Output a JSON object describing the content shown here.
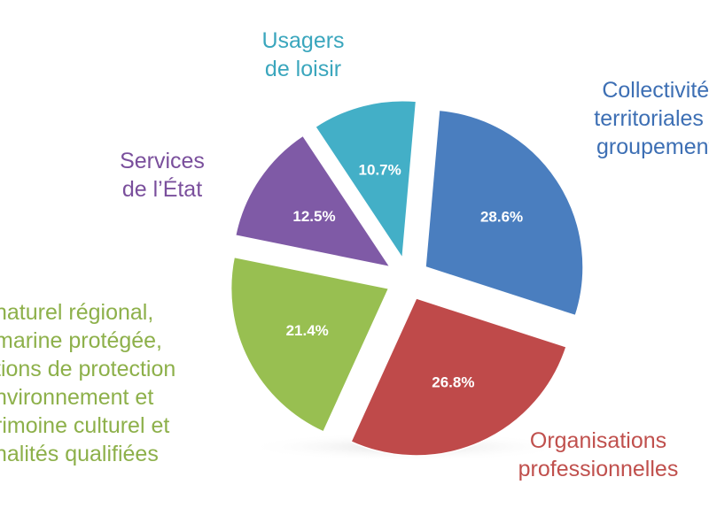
{
  "chart_data": {
    "type": "pie",
    "title": "",
    "legend": "none",
    "slices": [
      {
        "label_lines": [
          "Collectivités",
          "territoriales et",
          "groupements"
        ],
        "value": 28.6,
        "value_label": "28.6%",
        "color": "#4a7ebf",
        "label_color": "#3d6fb4"
      },
      {
        "label_lines": [
          "Organisations",
          "professionnelles"
        ],
        "value": 26.8,
        "value_label": "26.8%",
        "color": "#bf4a4a",
        "label_color": "#c0504d"
      },
      {
        "label_lines": [
          "naturel régional,",
          "marine protégée,",
          "tions de protection",
          "nvironnement et",
          "rimoine culturel et",
          "nalités qualifiées"
        ],
        "value": 21.4,
        "value_label": "21.4%",
        "color": "#98bf51",
        "label_color": "#8db04a"
      },
      {
        "label_lines": [
          "Services",
          "de l’État"
        ],
        "value": 12.5,
        "value_label": "12.5%",
        "color": "#7f5aa6",
        "label_color": "#7a4f9c"
      },
      {
        "label_lines": [
          "Usagers",
          "de loisir"
        ],
        "value": 10.7,
        "value_label": "10.7%",
        "color": "#43afc7",
        "label_color": "#3aa6bd"
      }
    ]
  }
}
